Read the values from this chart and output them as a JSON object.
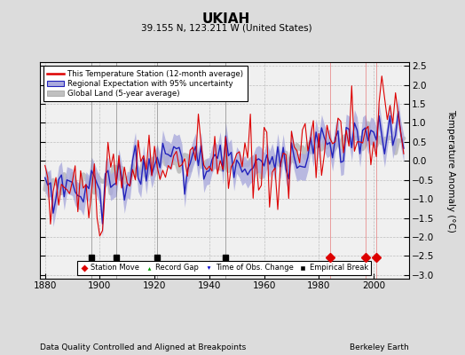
{
  "title": "UKIAH",
  "subtitle": "39.155 N, 123.211 W (United States)",
  "xlabel_bottom": "Data Quality Controlled and Aligned at Breakpoints",
  "xlabel_right": "Berkeley Earth",
  "ylabel": "Temperature Anomaly (°C)",
  "xlim": [
    1878,
    2013
  ],
  "ylim": [
    -3.1,
    2.6
  ],
  "yticks": [
    -3,
    -2.5,
    -2,
    -1.5,
    -1,
    -0.5,
    0,
    0.5,
    1,
    1.5,
    2,
    2.5
  ],
  "xticks": [
    1880,
    1900,
    1920,
    1940,
    1960,
    1980,
    2000
  ],
  "bg_color": "#dcdcdc",
  "plot_bg_color": "#f0f0f0",
  "station_color": "#dd0000",
  "regional_color": "#2222bb",
  "regional_fill_color": "#aaaadd",
  "global_color": "#c0c0c0",
  "empirical_breaks": [
    1897,
    1906,
    1921,
    1946
  ],
  "station_moves": [
    1984,
    1997,
    2001
  ],
  "time_obs_changes": [],
  "record_gaps": []
}
